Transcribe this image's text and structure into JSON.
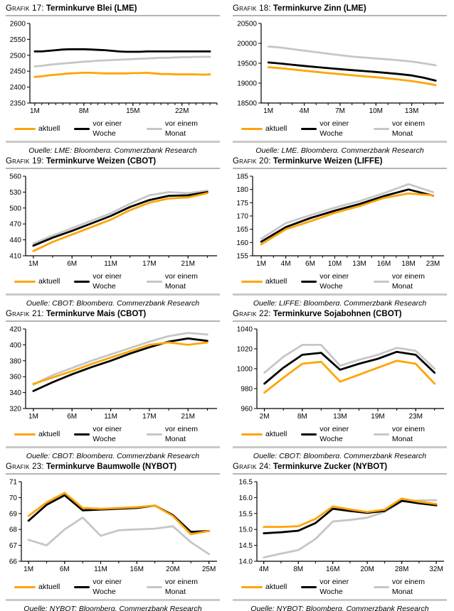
{
  "colors": {
    "aktuell": "#FFA405",
    "vor_einer_woche": "#000000",
    "vor_einem_monat": "#C6C6C6",
    "axis": "#000000",
    "title_divider": "#B4B4B4",
    "legend_divider": "#C9C9C9"
  },
  "chart_data": [
    {
      "type": "line",
      "label": "Grafik 17:",
      "title": "Terminkurve Blei (LME)",
      "source": "Quelle: LME; Bloomberg, Commerzbank Research",
      "legend_position": "bottom",
      "grid": false,
      "xlim": [
        0.3,
        27
      ],
      "ylim": [
        2350,
        2600
      ],
      "xminor_step": 1,
      "yticks": [
        {
          "v": 2350,
          "t": "2350"
        },
        {
          "v": 2400,
          "t": "2400"
        },
        {
          "v": 2450,
          "t": "2450"
        },
        {
          "v": 2500,
          "t": "2500"
        },
        {
          "v": 2550,
          "t": "2550"
        },
        {
          "v": 2600,
          "t": "2600"
        }
      ],
      "xticks": [
        {
          "v": 1,
          "t": "1M"
        },
        {
          "v": 8,
          "t": "8M"
        },
        {
          "v": 15,
          "t": "15M"
        },
        {
          "v": 22,
          "t": "22M"
        }
      ],
      "x": [
        1,
        2,
        3,
        4,
        5,
        6,
        7,
        8,
        9,
        10,
        11,
        12,
        13,
        14,
        15,
        16,
        17,
        18,
        19,
        20,
        21,
        22,
        23,
        24,
        25,
        26
      ],
      "series": [
        {
          "name": "aktuell",
          "color": "#FFA405",
          "values": [
            2432,
            2434,
            2437,
            2439,
            2441,
            2443,
            2444,
            2445,
            2445,
            2444,
            2443,
            2443,
            2443,
            2443,
            2444,
            2444,
            2445,
            2443,
            2441,
            2441,
            2440,
            2440,
            2440,
            2440,
            2439,
            2440
          ]
        },
        {
          "name": "vor einer Woche",
          "color": "#000000",
          "values": [
            2512,
            2512,
            2514,
            2516,
            2518,
            2519,
            2519,
            2519,
            2518,
            2517,
            2516,
            2514,
            2512,
            2511,
            2511,
            2511,
            2512,
            2512,
            2512,
            2512,
            2512,
            2512,
            2512,
            2512,
            2512,
            2512
          ]
        },
        {
          "name": "vor einem Monat",
          "color": "#C6C6C6",
          "values": [
            2465,
            2467,
            2470,
            2472,
            2474,
            2476,
            2478,
            2480,
            2481,
            2483,
            2484,
            2485,
            2486,
            2487,
            2488,
            2489,
            2490,
            2491,
            2492,
            2492,
            2493,
            2494,
            2494,
            2495,
            2495,
            2495
          ]
        }
      ]
    },
    {
      "type": "line",
      "label": "Grafik 18:",
      "title": "Terminkurve Zinn (LME)",
      "source": "Quelle: LME, Bloomberg, Commerzbank Research",
      "legend_position": "bottom",
      "grid": false,
      "xlim": [
        0.4,
        15.7
      ],
      "ylim": [
        18500,
        20500
      ],
      "xminor_step": 1,
      "yticks": [
        {
          "v": 18500,
          "t": "18500"
        },
        {
          "v": 19000,
          "t": "19000"
        },
        {
          "v": 19500,
          "t": "19500"
        },
        {
          "v": 20000,
          "t": "20000"
        },
        {
          "v": 20500,
          "t": "20500"
        }
      ],
      "xticks": [
        {
          "v": 1,
          "t": "1M"
        },
        {
          "v": 4,
          "t": "4M"
        },
        {
          "v": 7,
          "t": "7M"
        },
        {
          "v": 10,
          "t": "10M"
        },
        {
          "v": 13,
          "t": "13M"
        }
      ],
      "x": [
        1,
        2,
        3,
        4,
        5,
        6,
        7,
        8,
        9,
        10,
        11,
        12,
        13,
        14,
        15
      ],
      "series": [
        {
          "name": "aktuell",
          "color": "#FFA405",
          "values": [
            19400,
            19375,
            19345,
            19312,
            19282,
            19252,
            19225,
            19198,
            19172,
            19148,
            19120,
            19088,
            19052,
            19005,
            18950
          ]
        },
        {
          "name": "vor einer Woche",
          "color": "#000000",
          "values": [
            19520,
            19492,
            19462,
            19432,
            19404,
            19377,
            19351,
            19327,
            19304,
            19280,
            19254,
            19226,
            19192,
            19135,
            19062
          ]
        },
        {
          "name": "vor einem Monat",
          "color": "#C6C6C6",
          "values": [
            19920,
            19895,
            19856,
            19816,
            19778,
            19740,
            19703,
            19668,
            19642,
            19620,
            19598,
            19572,
            19542,
            19498,
            19448
          ]
        }
      ]
    },
    {
      "type": "line",
      "label": "Grafik 19:",
      "title": "Terminkurve Weizen (CBOT)",
      "source": "Quelle: CBOT; Bloomberg, Commerzbank Research",
      "legend_position": "bottom",
      "grid": false,
      "xlim": [
        -0.4,
        9.5
      ],
      "ylim": [
        410,
        560
      ],
      "xminor_step": 1,
      "yticks": [
        {
          "v": 410,
          "t": "410"
        },
        {
          "v": 440,
          "t": "440"
        },
        {
          "v": 470,
          "t": "470"
        },
        {
          "v": 500,
          "t": "500"
        },
        {
          "v": 530,
          "t": "530"
        },
        {
          "v": 560,
          "t": "560"
        }
      ],
      "xticks": [
        {
          "v": 0,
          "t": "1M"
        },
        {
          "v": 2,
          "t": "6M"
        },
        {
          "v": 4,
          "t": "11M"
        },
        {
          "v": 6,
          "t": "17M"
        },
        {
          "v": 8,
          "t": "21M"
        }
      ],
      "x": [
        0,
        1,
        2,
        3,
        4,
        5,
        6,
        7,
        8,
        9
      ],
      "series": [
        {
          "name": "aktuell",
          "color": "#FFA405",
          "values": [
            419,
            436,
            450,
            464,
            478,
            496,
            510,
            518,
            520,
            528
          ]
        },
        {
          "name": "vor einer Woche",
          "color": "#000000",
          "values": [
            429,
            444,
            457,
            471,
            485,
            502,
            515,
            523,
            524,
            530
          ]
        },
        {
          "name": "vor einem Monat",
          "color": "#C6C6C6",
          "values": [
            433,
            448,
            462,
            476,
            490,
            508,
            524,
            530,
            528,
            533
          ]
        }
      ]
    },
    {
      "type": "line",
      "label": "Grafik 20:",
      "title": "Terminkurve Weizen (LIFFE)",
      "source": "Quelle: LIFFE; Bloomberg, Commerzbank Research",
      "legend_position": "bottom",
      "grid": false,
      "xlim": [
        -0.35,
        7.45
      ],
      "ylim": [
        155,
        185
      ],
      "xminor_step": 0.5,
      "yticks": [
        {
          "v": 155,
          "t": "155"
        },
        {
          "v": 160,
          "t": "160"
        },
        {
          "v": 165,
          "t": "165"
        },
        {
          "v": 170,
          "t": "170"
        },
        {
          "v": 175,
          "t": "175"
        },
        {
          "v": 180,
          "t": "180"
        },
        {
          "v": 185,
          "t": "185"
        }
      ],
      "xticks": [
        {
          "v": 0,
          "t": "1M"
        },
        {
          "v": 1,
          "t": "4M"
        },
        {
          "v": 2,
          "t": "6M"
        },
        {
          "v": 3,
          "t": "10M"
        },
        {
          "v": 4,
          "t": "13M"
        },
        {
          "v": 5,
          "t": "16M"
        },
        {
          "v": 6,
          "t": "18M"
        },
        {
          "v": 7,
          "t": "23M"
        }
      ],
      "x": [
        0,
        1,
        2,
        3,
        4,
        5,
        6,
        7
      ],
      "series": [
        {
          "name": "aktuell",
          "color": "#FFA405",
          "values": [
            159.3,
            165.0,
            168.0,
            171.2,
            173.7,
            176.8,
            178.5,
            177.8
          ]
        },
        {
          "name": "vor einer Woche",
          "color": "#000000",
          "values": [
            160.3,
            165.8,
            169.2,
            172.0,
            174.5,
            177.5,
            180.0,
            177.7
          ]
        },
        {
          "name": "vor einem Monat",
          "color": "#C6C6C6",
          "values": [
            161.4,
            167.3,
            170.3,
            173.1,
            175.6,
            178.6,
            182.0,
            179.0
          ]
        }
      ]
    },
    {
      "type": "line",
      "label": "Grafik 21:",
      "title": "Terminkurve Mais (CBOT)",
      "source": "Quelle: CBOT; Bloomberg, Commerzbank Research",
      "legend_position": "bottom",
      "grid": false,
      "xlim": [
        -0.4,
        9.5
      ],
      "ylim": [
        320,
        420
      ],
      "xminor_step": 1,
      "yticks": [
        {
          "v": 320,
          "t": "320"
        },
        {
          "v": 340,
          "t": "340"
        },
        {
          "v": 360,
          "t": "360"
        },
        {
          "v": 380,
          "t": "380"
        },
        {
          "v": 400,
          "t": "400"
        },
        {
          "v": 420,
          "t": "420"
        }
      ],
      "xticks": [
        {
          "v": 0,
          "t": "1M"
        },
        {
          "v": 2,
          "t": "6M"
        },
        {
          "v": 4,
          "t": "11M"
        },
        {
          "v": 6,
          "t": "17M"
        },
        {
          "v": 8,
          "t": "21M"
        }
      ],
      "x": [
        0,
        1,
        2,
        3,
        4,
        5,
        6,
        7,
        8,
        9
      ],
      "series": [
        {
          "name": "aktuell",
          "color": "#FFA405",
          "values": [
            351,
            359,
            367,
            376,
            384,
            392,
            400,
            403,
            400,
            403
          ]
        },
        {
          "name": "vor einer Woche",
          "color": "#000000",
          "values": [
            342,
            353,
            363,
            372,
            380,
            389,
            397,
            404,
            408,
            405
          ]
        },
        {
          "name": "vor einem Monat",
          "color": "#C6C6C6",
          "values": [
            350,
            362,
            371,
            380,
            388,
            396,
            404,
            411,
            415,
            413
          ]
        }
      ]
    },
    {
      "type": "line",
      "label": "Grafik 22:",
      "title": "Terminkurve Sojabohnen (CBOT)",
      "source": "Quelle: CBOT; Bloomberg, Commerzbank Research",
      "legend_position": "bottom",
      "grid": false,
      "xlim": [
        -0.4,
        9.5
      ],
      "ylim": [
        960,
        1040
      ],
      "xminor_step": 1,
      "yticks": [
        {
          "v": 960,
          "t": "960"
        },
        {
          "v": 980,
          "t": "980"
        },
        {
          "v": 1000,
          "t": "1000"
        },
        {
          "v": 1020,
          "t": "1020"
        },
        {
          "v": 1040,
          "t": "1040"
        }
      ],
      "xticks": [
        {
          "v": 0,
          "t": "2M"
        },
        {
          "v": 2,
          "t": "8M"
        },
        {
          "v": 4,
          "t": "13M"
        },
        {
          "v": 6,
          "t": "19M"
        },
        {
          "v": 8,
          "t": "23M"
        }
      ],
      "x": [
        0,
        1,
        2,
        3,
        4,
        5,
        6,
        7,
        8,
        9
      ],
      "series": [
        {
          "name": "aktuell",
          "color": "#FFA405",
          "values": [
            976,
            991,
            1005,
            1007,
            987,
            994,
            1001,
            1008,
            1005,
            985
          ]
        },
        {
          "name": "vor einer Woche",
          "color": "#000000",
          "values": [
            985,
            1001,
            1014,
            1016,
            999,
            1005,
            1010,
            1017,
            1014,
            996
          ]
        },
        {
          "name": "vor einem Monat",
          "color": "#C6C6C6",
          "values": [
            996,
            1012,
            1024,
            1024,
            1003,
            1009,
            1014,
            1021,
            1018,
            1000
          ]
        }
      ]
    },
    {
      "type": "line",
      "label": "Grafik 23:",
      "title": "Terminkurve Baumwolle (NYBOT)",
      "source": "Quelle: NYBOT; Bloomberg, Commerzbank Research",
      "legend_position": "bottom",
      "grid": false,
      "xlim": [
        -0.4,
        10.45
      ],
      "ylim": [
        66,
        71
      ],
      "xminor_step": 1,
      "yticks": [
        {
          "v": 66,
          "t": "66"
        },
        {
          "v": 67,
          "t": "67"
        },
        {
          "v": 68,
          "t": "68"
        },
        {
          "v": 69,
          "t": "69"
        },
        {
          "v": 70,
          "t": "70"
        },
        {
          "v": 71,
          "t": "71"
        }
      ],
      "xticks": [
        {
          "v": 0,
          "t": "1M"
        },
        {
          "v": 2,
          "t": "6M"
        },
        {
          "v": 4,
          "t": "11M"
        },
        {
          "v": 6,
          "t": "16M"
        },
        {
          "v": 8,
          "t": "20M"
        },
        {
          "v": 10,
          "t": "25M"
        }
      ],
      "x": [
        0,
        1,
        2,
        3,
        4,
        5,
        6,
        7,
        8,
        9,
        10
      ],
      "series": [
        {
          "name": "aktuell",
          "color": "#FFA405",
          "values": [
            68.85,
            69.7,
            70.3,
            69.35,
            69.3,
            69.35,
            69.4,
            69.5,
            68.85,
            67.7,
            67.9
          ]
        },
        {
          "name": "vor einer Woche",
          "color": "#000000",
          "values": [
            68.55,
            69.55,
            70.15,
            69.2,
            69.25,
            69.3,
            69.35,
            69.5,
            68.9,
            67.85,
            67.9
          ]
        },
        {
          "name": "vor einem Monat",
          "color": "#C6C6C6",
          "values": [
            67.35,
            67.0,
            68.0,
            68.75,
            67.6,
            67.95,
            68.0,
            68.05,
            68.2,
            67.2,
            66.45
          ]
        }
      ]
    },
    {
      "type": "line",
      "label": "Grafik 24:",
      "title": "Terminkurve Zucker (NYBOT)",
      "source": "Quelle: NYBOT; Bloomberg, Commerzbank Research",
      "legend_position": "bottom",
      "grid": false,
      "xlim": [
        -0.4,
        10.45
      ],
      "ylim": [
        14.0,
        16.5
      ],
      "xminor_step": 1,
      "yticks": [
        {
          "v": 14.0,
          "t": "14.0"
        },
        {
          "v": 14.5,
          "t": "14.5"
        },
        {
          "v": 15.0,
          "t": "15.0"
        },
        {
          "v": 15.5,
          "t": "15.5"
        },
        {
          "v": 16.0,
          "t": "16.0"
        },
        {
          "v": 16.5,
          "t": "16.5"
        }
      ],
      "xticks": [
        {
          "v": 0,
          "t": "4M"
        },
        {
          "v": 2,
          "t": "8M"
        },
        {
          "v": 4,
          "t": "16M"
        },
        {
          "v": 6,
          "t": "20M"
        },
        {
          "v": 8,
          "t": "28M"
        },
        {
          "v": 10,
          "t": "32M"
        }
      ],
      "x": [
        0,
        1,
        2,
        3,
        4,
        5,
        6,
        7,
        8,
        9,
        10
      ],
      "series": [
        {
          "name": "aktuell",
          "color": "#FFA405",
          "values": [
            15.08,
            15.08,
            15.1,
            15.33,
            15.72,
            15.63,
            15.55,
            15.62,
            15.97,
            15.87,
            15.8
          ]
        },
        {
          "name": "vor einer Woche",
          "color": "#000000",
          "values": [
            14.88,
            14.91,
            14.96,
            15.2,
            15.65,
            15.58,
            15.52,
            15.58,
            15.9,
            15.82,
            15.76
          ]
        },
        {
          "name": "vor einem Monat",
          "color": "#C6C6C6",
          "values": [
            14.12,
            14.24,
            14.35,
            14.7,
            15.25,
            15.3,
            15.37,
            15.55,
            15.88,
            15.91,
            15.92
          ]
        }
      ]
    }
  ]
}
